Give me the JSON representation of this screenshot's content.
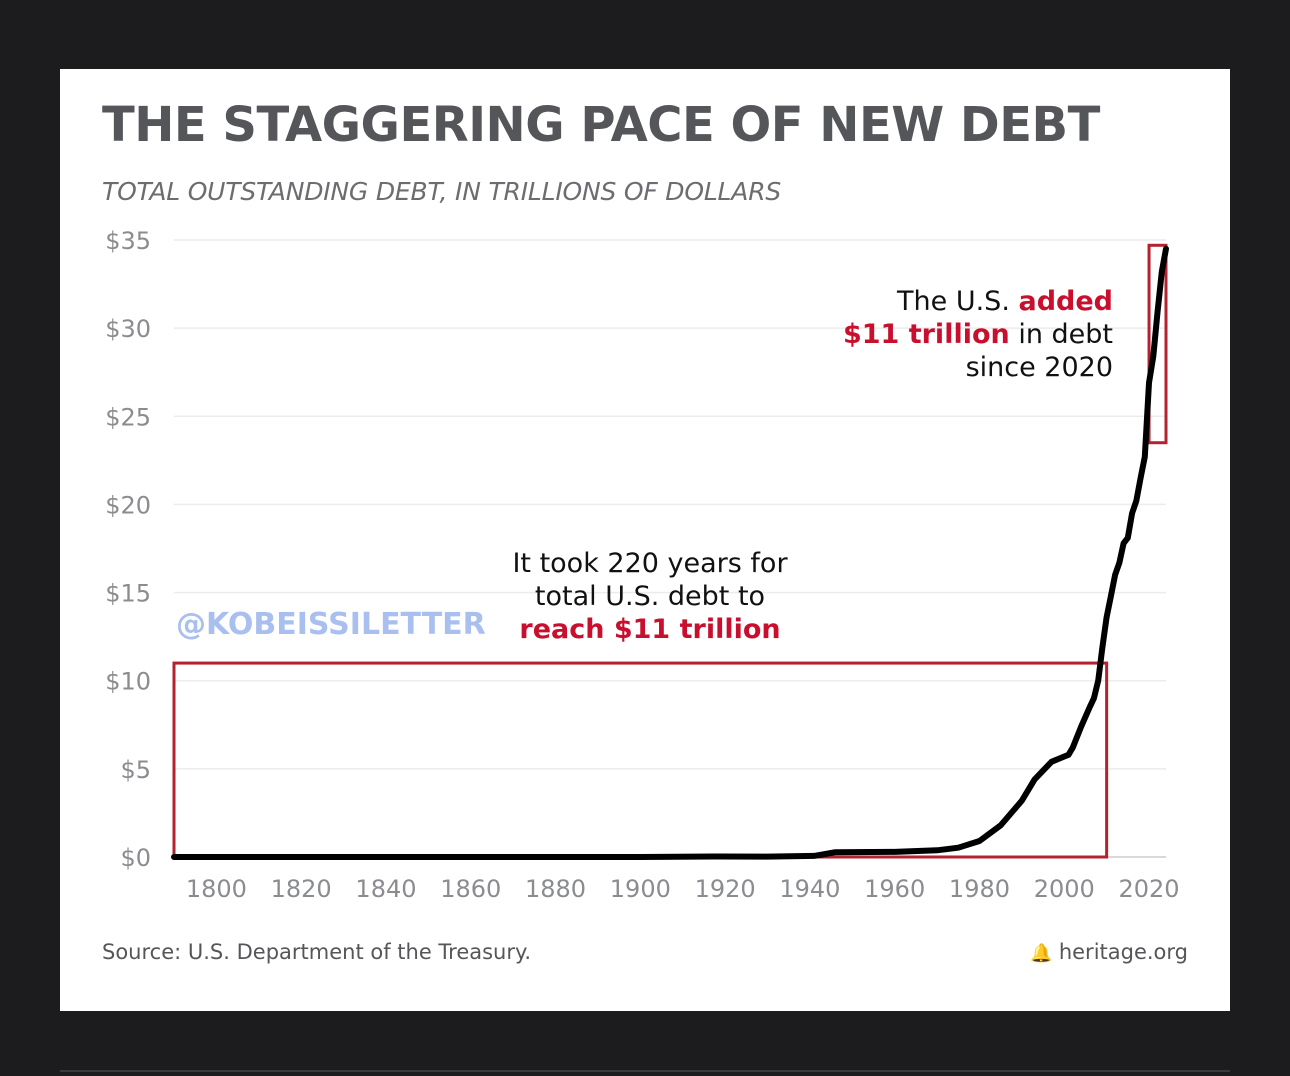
{
  "chart_data": {
    "type": "line",
    "title": "THE STAGGERING PACE OF NEW DEBT",
    "subtitle": "TOTAL OUTSTANDING DEBT, IN TRILLIONS OF DOLLARS",
    "xlim": [
      1790,
      2024
    ],
    "ylim": [
      0,
      35
    ],
    "x_ticks": [
      1800,
      1820,
      1840,
      1860,
      1880,
      1900,
      1920,
      1940,
      1960,
      1980,
      2000,
      2020
    ],
    "x_tick_labels": [
      "1800",
      "1820",
      "1840",
      "1860",
      "1880",
      "1900",
      "1920",
      "1940",
      "1960",
      "1980",
      "2000",
      "2020"
    ],
    "y_ticks": [
      0,
      5,
      10,
      15,
      20,
      25,
      30,
      35
    ],
    "y_tick_labels": [
      "$0",
      "$5",
      "$10",
      "$15",
      "$20",
      "$25",
      "$30",
      "$35"
    ],
    "grid": "horizontal",
    "series": [
      {
        "x": [
          1790,
          1900,
          1917,
          1919,
          1930,
          1941,
          1943,
          1946,
          1960,
          1970,
          1975,
          1980,
          1985,
          1990,
          1993,
          1997,
          2000,
          2001,
          2002,
          2004,
          2006,
          2007,
          2008,
          2009,
          2010,
          2011,
          2012,
          2013,
          2014,
          2015,
          2016,
          2017,
          2018,
          2019,
          2020,
          2021,
          2022,
          2023,
          2024
        ],
        "y": [
          0.0,
          0.0,
          0.03,
          0.03,
          0.02,
          0.06,
          0.14,
          0.27,
          0.29,
          0.38,
          0.53,
          0.91,
          1.8,
          3.2,
          4.4,
          5.4,
          5.7,
          5.8,
          6.2,
          7.4,
          8.5,
          9.0,
          10.0,
          11.9,
          13.6,
          14.8,
          16.0,
          16.7,
          17.8,
          18.1,
          19.5,
          20.2,
          21.5,
          22.7,
          26.9,
          28.4,
          30.9,
          33.2,
          34.5
        ],
        "color": "#000000"
      }
    ],
    "annotations": {
      "recent": {
        "line1_pre": "The U.S. ",
        "line1_highlight": "added",
        "line2_highlight": "$11 trillion",
        "line2_post": " in debt",
        "line3": "since 2020",
        "box_range": {
          "x": [
            2020,
            2024
          ],
          "y": [
            23.5,
            34.7
          ]
        }
      },
      "history": {
        "line1": "It took 220 years for",
        "line2": "total U.S. debt to",
        "line3_highlight": "reach $11 trillion",
        "box_range": {
          "x": [
            1790,
            2010
          ],
          "y": [
            0,
            11
          ]
        }
      },
      "watermark": "@KOBEISSILETTER"
    },
    "colors": {
      "highlight": "#c8102e",
      "box": "#b5222f",
      "line": "#000000",
      "axis_text": "#8a8c8f",
      "grid": "#ececec",
      "watermark": "#a9bff0"
    }
  },
  "footer": {
    "source": "Source: U.S. Department of the Treasury.",
    "brand_icon": "liberty-bell-icon",
    "brand": "heritage.org"
  }
}
